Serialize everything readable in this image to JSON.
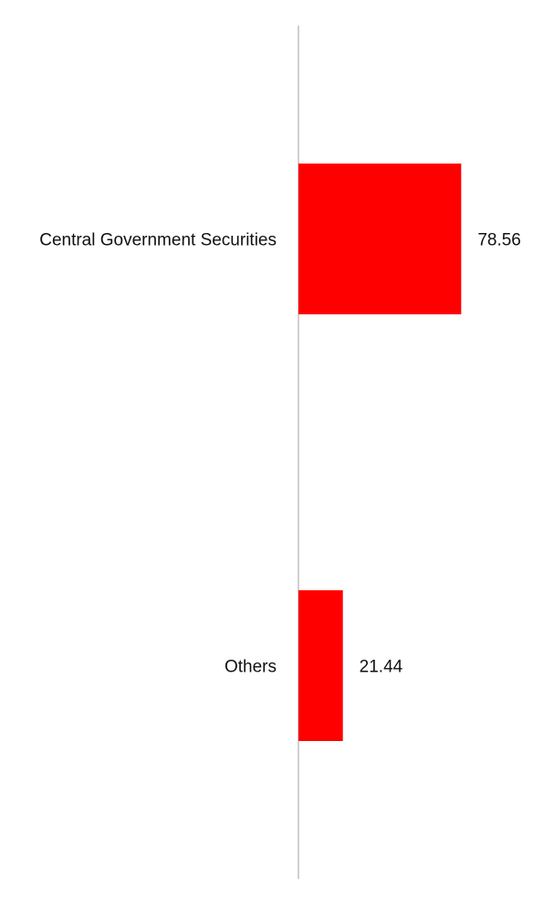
{
  "chart_data": {
    "type": "bar",
    "orientation": "horizontal",
    "categories": [
      "Central Government Securities",
      "Others"
    ],
    "values": [
      78.56,
      21.44
    ],
    "title": "",
    "xlabel": "",
    "ylabel": "",
    "xlim": [
      0,
      100
    ],
    "grid": false,
    "legend": "none",
    "bar_color": "#ff0000",
    "axis_color": "#d0d0d0",
    "text_color": "#111111"
  }
}
